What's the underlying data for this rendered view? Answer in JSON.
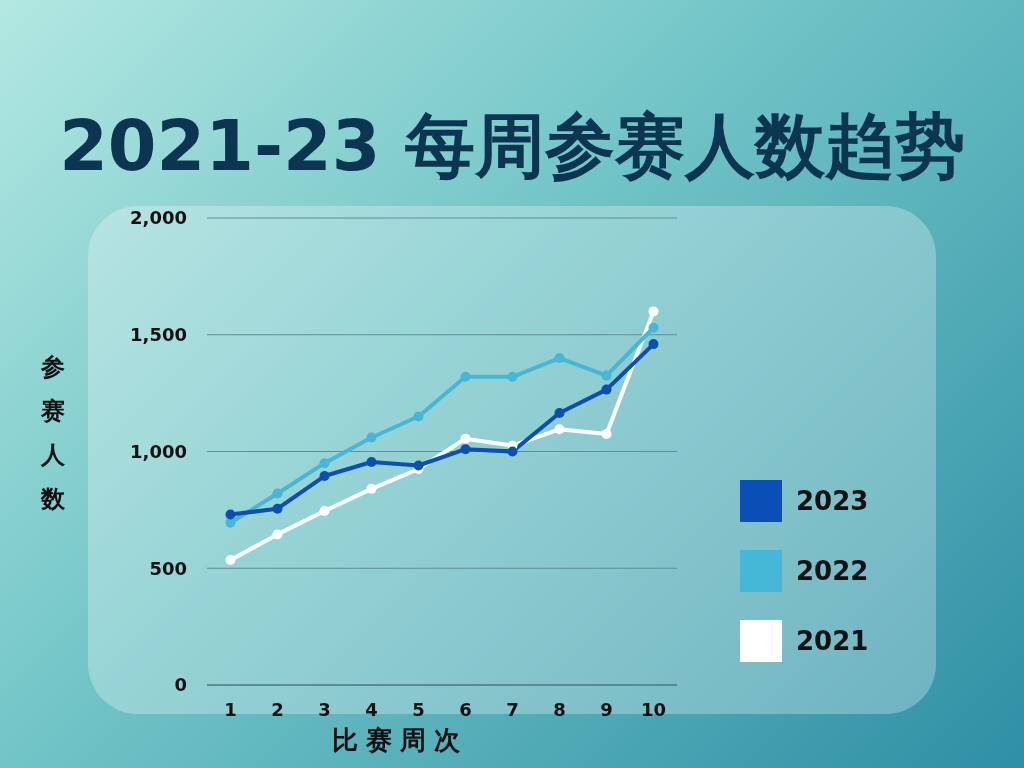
{
  "chart_data": {
    "type": "line",
    "title": "2021-23 每周参赛人数趋势",
    "xlabel": "比赛周次",
    "ylabel": "参赛人数",
    "categories": [
      "1",
      "2",
      "3",
      "4",
      "5",
      "6",
      "7",
      "8",
      "9",
      "10"
    ],
    "series": [
      {
        "name": "2023",
        "color": "#0a4fb5",
        "values": [
          730,
          755,
          895,
          955,
          940,
          1010,
          1000,
          1165,
          1265,
          1460
        ]
      },
      {
        "name": "2022",
        "color": "#45b8d8",
        "values": [
          695,
          820,
          950,
          1060,
          1150,
          1320,
          1320,
          1400,
          1325,
          1530
        ]
      },
      {
        "name": "2021",
        "color": "#ffffff",
        "values": [
          535,
          645,
          745,
          840,
          925,
          1055,
          1025,
          1095,
          1075,
          1600
        ]
      }
    ],
    "ylim": [
      0,
      2000
    ],
    "yticks": [
      0,
      {
        "value": 500,
        "label": "500"
      },
      {
        "value": 1000,
        "label": "1,000"
      },
      {
        "value": 1500,
        "label": "1,500"
      },
      {
        "value": 2000,
        "label": "2,000"
      }
    ],
    "grid": "y",
    "legend": "right",
    "marker": "circle",
    "line_style": "solid"
  }
}
